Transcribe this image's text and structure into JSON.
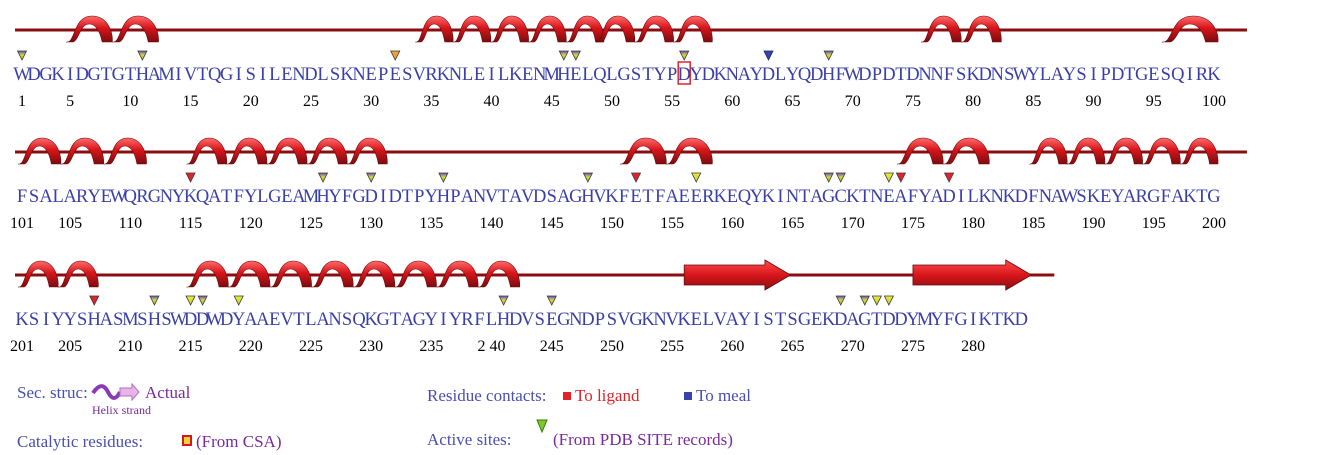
{
  "rows": [
    {
      "start": 1,
      "sequence": "WDGKIDGTGTHAMIVTQGISILENDLSKNEPESVRKNLEILKENMHELQLGSTYPDYDKNAYDLYQDHFWDPDTDNNFSKDNSWYLAYSIPDTGESQIRK",
      "numbers": [
        "1",
        "5",
        "10",
        "15",
        "20",
        "25",
        "30",
        "35",
        "40",
        "45",
        "50",
        "55",
        "60",
        "65",
        "70",
        "75",
        "80",
        "85",
        "90",
        "95",
        "100"
      ],
      "helices": [
        [
          5,
          12
        ],
        [
          34,
          49
        ],
        [
          49,
          58
        ],
        [
          76,
          82
        ],
        [
          96,
          100
        ]
      ],
      "strands": [],
      "markers": [
        {
          "res": 1,
          "type": "site"
        },
        {
          "res": 11,
          "type": "site"
        },
        {
          "res": 32,
          "type": "orange"
        },
        {
          "res": 46,
          "type": "site"
        },
        {
          "res": 47,
          "type": "site"
        },
        {
          "res": 56,
          "type": "site"
        },
        {
          "res": 63,
          "type": "metal"
        },
        {
          "res": 68,
          "type": "site"
        }
      ],
      "catalytic": [
        56
      ]
    },
    {
      "start": 101,
      "sequence": "FSALARYEWQRGNYKQATFYLGEAMHYFGDIDTPYHPANVTAVDSAGHVKFETFAEERKEQYKINTAGCKTNEAFYADILKNKDFNAWSKEYARGFAKTG",
      "numbers": [
        "101",
        "105",
        "110",
        "115",
        "120",
        "125",
        "130",
        "135",
        "140",
        "145",
        "150",
        "155",
        "160",
        "165",
        "170",
        "175",
        "180",
        "185",
        "190",
        "195",
        "200"
      ],
      "helices": [
        [
          101,
          111
        ],
        [
          115,
          131
        ],
        [
          151,
          158
        ],
        [
          174,
          181
        ],
        [
          185,
          200
        ]
      ],
      "strands": [],
      "markers": [
        {
          "res": 115,
          "type": "red"
        },
        {
          "res": 126,
          "type": "site"
        },
        {
          "res": 130,
          "type": "site"
        },
        {
          "res": 136,
          "type": "site"
        },
        {
          "res": 148,
          "type": "site"
        },
        {
          "res": 152,
          "type": "red"
        },
        {
          "res": 157,
          "type": "yellow"
        },
        {
          "res": 168,
          "type": "site"
        },
        {
          "res": 169,
          "type": "site"
        },
        {
          "res": 173,
          "type": "yellow"
        },
        {
          "res": 174,
          "type": "red"
        },
        {
          "res": 178,
          "type": "red"
        }
      ],
      "catalytic": []
    },
    {
      "start": 201,
      "sequence": "KSIYYSHASMSHSWDDWDYAAEVTLANSQKGTAGYIYRFLHDVSEGNDPSVGKNVKELVAYISTSGEKDAGTDDYMYFGIKTKD",
      "numbers": [
        "201",
        "205",
        "210",
        "215",
        "220",
        "225",
        "230",
        "235",
        "2 40",
        "245",
        "250",
        "255",
        "260",
        "265",
        "270",
        "275",
        "280"
      ],
      "helices": [
        [
          201,
          207
        ],
        [
          215,
          242
        ]
      ],
      "strands": [
        [
          256,
          264
        ],
        [
          275,
          284
        ]
      ],
      "markers": [
        {
          "res": 207,
          "type": "red"
        },
        {
          "res": 212,
          "type": "site"
        },
        {
          "res": 215,
          "type": "yellow"
        },
        {
          "res": 216,
          "type": "site"
        },
        {
          "res": 219,
          "type": "yellow"
        },
        {
          "res": 241,
          "type": "site"
        },
        {
          "res": 245,
          "type": "site"
        },
        {
          "res": 269,
          "type": "site"
        },
        {
          "res": 271,
          "type": "site"
        },
        {
          "res": 272,
          "type": "yellow"
        },
        {
          "res": 273,
          "type": "yellow"
        }
      ],
      "catalytic": []
    }
  ],
  "legend": {
    "sec_struc_label": "Sec. struc:",
    "sec_struc_actual": "Actual",
    "sec_struc_caption": "Helix strand",
    "catalytic_label": "Catalytic residues:",
    "catalytic_source": "(From CSA)",
    "contacts_label": "Residue contacts:",
    "to_ligand": "To ligand",
    "to_metal": "To meal",
    "active_label": "Active sites:",
    "active_source": "(From PDB SITE records)"
  },
  "colors": {
    "helix": "#d8161b",
    "helix_dark": "#8a0d10",
    "sequence_text": "#3a3fa8",
    "ligand": "#e0242a",
    "metal": "#3a44a8",
    "site": "#7ec82a",
    "legend_purple": "#7a2a9a"
  }
}
